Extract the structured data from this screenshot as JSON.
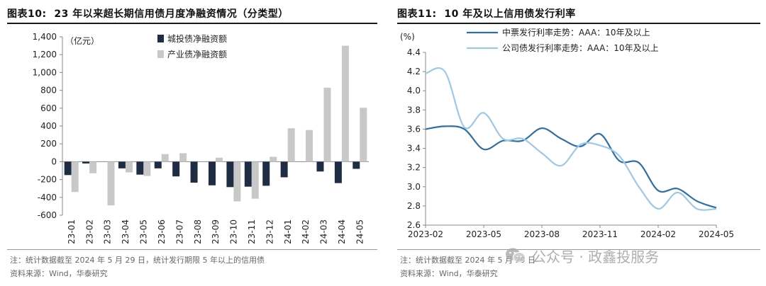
{
  "left": {
    "fig_label": "图表10:",
    "fig_title": "23 年以来超长期信用债月度净融资情况（分类型）",
    "note": "注：统计数据截至 2024 年 5 月 29 日，统计发行期限 5 年以上的信用债",
    "source": "资料来源：Wind，华泰研究"
  },
  "right": {
    "fig_label": "图表11:",
    "fig_title": "10 年及以上信用债发行利率",
    "note": "注：统计数据截至 2024 年 5 月 29 日",
    "source": "资料来源：Wind，华泰研究"
  },
  "watermark": {
    "text": "公众号 · 政鑫投服务",
    "icon": "wechat-icon"
  },
  "chart_data": [
    {
      "type": "bar",
      "title": "23 年以来超长期信用债月度净融资情况（分类型）",
      "unit_label": "（亿元）",
      "ylim": [
        -600,
        1400
      ],
      "yticks": [
        -600,
        -400,
        -200,
        0,
        200,
        400,
        600,
        800,
        1000,
        1200,
        1400
      ],
      "ytick_labels": [
        "-600",
        "-400",
        "-200",
        "0",
        "200",
        "400",
        "600",
        "800",
        "1,000",
        "1,200",
        "1,400"
      ],
      "categories": [
        "23-01",
        "23-02",
        "23-03",
        "23-04",
        "23-05",
        "23-06",
        "23-07",
        "23-08",
        "23-09",
        "23-10",
        "23-11",
        "23-12",
        "24-01",
        "24-02",
        "24-03",
        "24-04",
        "24-05"
      ],
      "series": [
        {
          "name": "城投债净融资额",
          "color": "#1f2d44",
          "values": [
            -150,
            -20,
            0,
            -75,
            -145,
            -75,
            -165,
            -235,
            -265,
            -285,
            -280,
            -270,
            -175,
            0,
            -110,
            -240,
            -80
          ]
        },
        {
          "name": "产业债净融资额",
          "color": "#c8c8c8",
          "values": [
            -340,
            -130,
            -490,
            -120,
            -160,
            85,
            95,
            0,
            45,
            -445,
            -415,
            55,
            375,
            355,
            830,
            1300,
            605
          ]
        }
      ],
      "legend_position": "top-left"
    },
    {
      "type": "line",
      "title": "10 年及以上信用债发行利率",
      "unit_label": "(%)",
      "ylim": [
        2.6,
        4.4
      ],
      "yticks": [
        2.6,
        2.8,
        3.0,
        3.2,
        3.4,
        3.6,
        3.8,
        4.0,
        4.2,
        4.4
      ],
      "ytick_labels": [
        "2.6",
        "2.8",
        "3.0",
        "3.2",
        "3.4",
        "3.6",
        "3.8",
        "4.0",
        "4.2",
        "4.4"
      ],
      "x_range": [
        "2023-02",
        "2024-05"
      ],
      "xtick_labels": [
        "2023-02",
        "2023-05",
        "2023-08",
        "2023-11",
        "2024-02",
        "2024-05"
      ],
      "series": [
        {
          "name": "中票发行利率走势：AAA：10年及以上",
          "color": "#2e6fa6",
          "x": [
            "2023-02",
            "2023-03",
            "2023-04",
            "2023-05",
            "2023-06",
            "2023-07",
            "2023-08",
            "2023-09",
            "2023-10",
            "2023-11",
            "2023-12",
            "2024-01",
            "2024-02",
            "2024-03",
            "2024-04",
            "2024-05"
          ],
          "y": [
            3.6,
            3.63,
            3.6,
            3.39,
            3.48,
            3.48,
            3.61,
            3.5,
            3.42,
            3.55,
            3.27,
            3.25,
            2.96,
            2.98,
            2.85,
            2.78
          ]
        },
        {
          "name": "公司债发行利率走势：AAA：10年及以上",
          "color": "#9dc8e8",
          "x": [
            "2023-02",
            "2023-03",
            "2023-04",
            "2023-05",
            "2023-06",
            "2023-07",
            "2023-08",
            "2023-09",
            "2023-10",
            "2023-11",
            "2023-12",
            "2024-01",
            "2024-02",
            "2024-03",
            "2024-04",
            "2024-05"
          ],
          "y": [
            4.18,
            4.2,
            3.62,
            3.77,
            3.5,
            3.5,
            3.35,
            3.22,
            3.44,
            3.43,
            3.32,
            3.0,
            2.77,
            2.94,
            2.77,
            2.77
          ]
        }
      ],
      "legend_position": "top-left"
    }
  ]
}
